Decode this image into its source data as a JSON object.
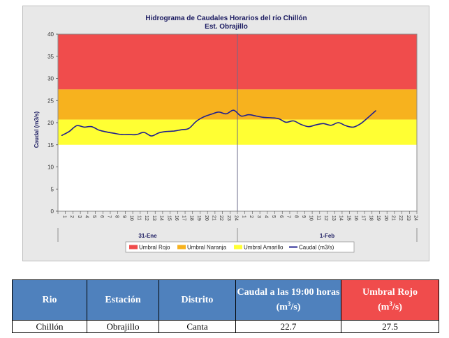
{
  "chart_data": {
    "type": "line",
    "title": "Hidrograma de Caudales Horarios del río Chillón",
    "subtitle": "Est. Obrajillo",
    "ylabel": "Caudal (m3/s)",
    "ylim": [
      0,
      40
    ],
    "yticks": [
      0,
      5,
      10,
      15,
      20,
      25,
      30,
      35,
      40
    ],
    "grid": false,
    "legend_position": "bottom",
    "day_labels": [
      "31-Ene",
      "1-Feb"
    ],
    "hour_labels": [
      "1",
      "2",
      "3",
      "4",
      "5",
      "6",
      "7",
      "8",
      "9",
      "10",
      "11",
      "12",
      "13",
      "14",
      "15",
      "16",
      "17",
      "18",
      "19",
      "20",
      "21",
      "22",
      "23",
      "24"
    ],
    "bands": [
      {
        "name": "Umbral Rojo",
        "from": 27.5,
        "to": 40,
        "color": "#f04c4c"
      },
      {
        "name": "Umbral Naranja",
        "from": 20.7,
        "to": 27.5,
        "color": "#f7b21e"
      },
      {
        "name": "Umbral Amarillo",
        "from": 15,
        "to": 20.7,
        "color": "#ffff33"
      }
    ],
    "series": [
      {
        "name": "Caudal (m3/s)",
        "color": "#1f1f8f",
        "values": [
          17.1,
          18.0,
          19.3,
          19.0,
          19.1,
          18.3,
          17.9,
          17.6,
          17.3,
          17.3,
          17.3,
          17.8,
          17.0,
          17.7,
          18.0,
          18.1,
          18.4,
          18.7,
          20.3,
          21.3,
          21.9,
          22.4,
          22.0,
          22.8,
          21.5,
          21.8,
          21.5,
          21.2,
          21.1,
          20.9,
          20.1,
          20.4,
          19.6,
          19.1,
          19.5,
          19.8,
          19.4,
          20.0,
          19.3,
          19.0,
          19.8,
          21.2,
          22.7
        ]
      }
    ]
  },
  "table": {
    "headers": [
      "Rio",
      "Estación",
      "Distrito",
      "Caudal a las 19:00 horas",
      "Umbral Rojo"
    ],
    "header_unit": "(m",
    "unit_exp": "3",
    "unit_tail": "/s)",
    "row": [
      "Chillón",
      "Obrajillo",
      "Canta",
      "22.7",
      "27.5"
    ]
  },
  "colors": {
    "header_blue": "#4f81bd",
    "header_red": "#f04c4c",
    "line": "#1f1f8f"
  }
}
